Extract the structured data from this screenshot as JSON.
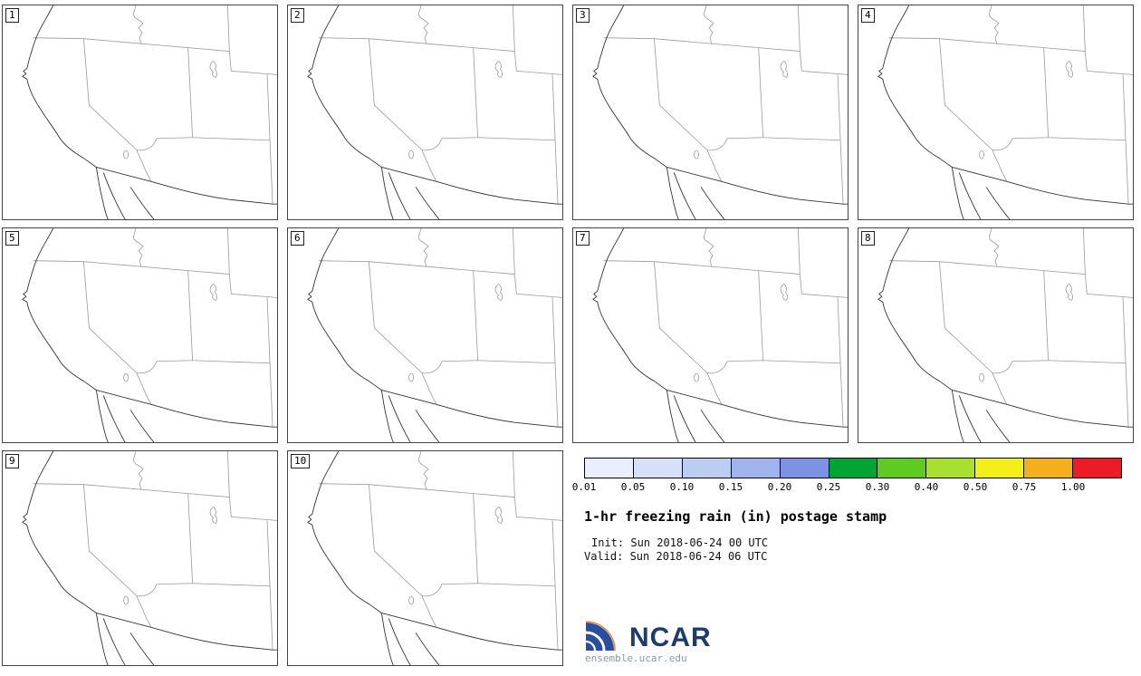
{
  "title": "1-hr freezing rain (in) postage stamp",
  "init_line": "Init: Sun 2018-06-24 00 UTC",
  "valid_line": "Valid: Sun 2018-06-24 06 UTC",
  "panels": [
    {
      "label": "1"
    },
    {
      "label": "2"
    },
    {
      "label": "3"
    },
    {
      "label": "4"
    },
    {
      "label": "5"
    },
    {
      "label": "6"
    },
    {
      "label": "7"
    },
    {
      "label": "8"
    },
    {
      "label": "9"
    },
    {
      "label": "10"
    }
  ],
  "colorbar": {
    "ticks": [
      "0.01",
      "0.05",
      "0.10",
      "0.15",
      "0.20",
      "0.25",
      "0.30",
      "0.40",
      "0.50",
      "0.75",
      "1.00"
    ],
    "colors": [
      "#e9f0fb",
      "#d5e1f7",
      "#bccdf2",
      "#9fb3ec",
      "#7e92e4",
      "#00a433",
      "#5ecb22",
      "#a9e030",
      "#f2ef1a",
      "#f4b01c",
      "#ec1c24"
    ]
  },
  "logo": {
    "text": "NCAR",
    "site": "ensemble.ucar.edu"
  },
  "chart_data": {
    "type": "heatmap",
    "subtype": "ensemble postage-stamp forecast maps",
    "title": "1-hr freezing rain (in) postage stamp",
    "init": "Sun 2018-06-24 00 UTC",
    "valid": "Sun 2018-06-24 06 UTC",
    "members": [
      1,
      2,
      3,
      4,
      5,
      6,
      7,
      8,
      9,
      10
    ],
    "colorbar_levels_in": [
      0.01,
      0.05,
      0.1,
      0.15,
      0.2,
      0.25,
      0.3,
      0.4,
      0.5,
      0.75,
      1.0
    ],
    "region": "southwestern United States (CA, NV, UT, AZ, northern Baja California)",
    "values": "no freezing rain shading plotted in any member; all 10 panels show blank base maps",
    "legend_position": "bottom-right block spanning two panel columns"
  }
}
